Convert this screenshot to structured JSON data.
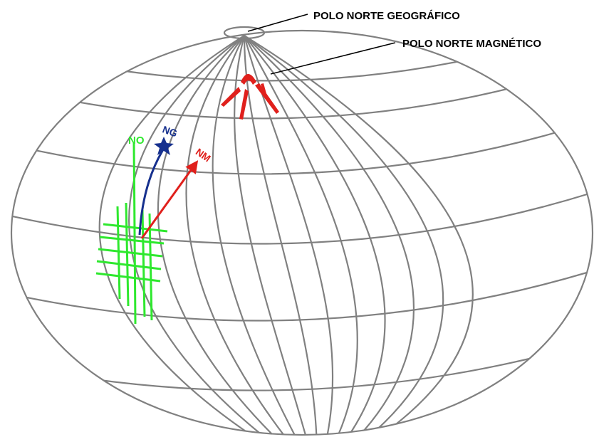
{
  "labels": {
    "geographic_pole": "POLO NORTE GEOGRÁFICO",
    "magnetic_pole": "POLO NORTE MAGNÉTICO",
    "north_grid": "NO",
    "north_geographic": "NG",
    "north_magnetic": "NM"
  }
}
